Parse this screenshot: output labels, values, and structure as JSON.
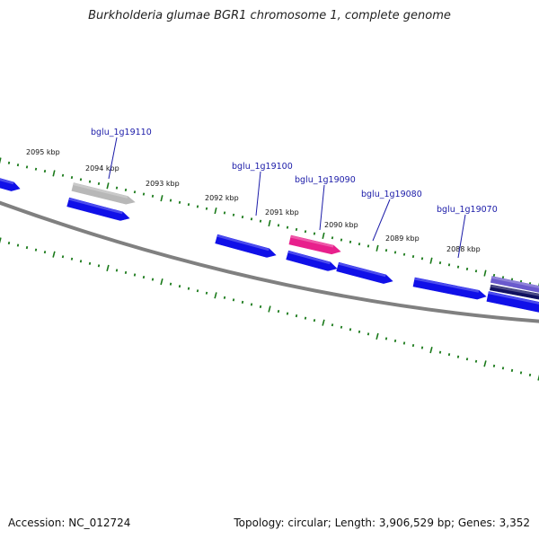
{
  "title": "Burkholderia glumae BGR1 chromosome 1, complete genome",
  "footer": {
    "accession": "Accession: NC_012724",
    "summary": "Topology: circular; Length: 3,906,529 bp; Genes: 3,352"
  },
  "colors": {
    "gene_blue": "#1010e8",
    "gene_grey": "#b8b8b8",
    "gene_pink": "#e8208c",
    "gene_purple": "#6a5acd",
    "gene_navy": "#101060",
    "backbone": "#808080",
    "tick": "#1a7a1a",
    "label_line": "#1a1aa8"
  },
  "tick_labels": [
    "2095 kbp",
    "2094 kbp",
    "2093 kbp",
    "2092 kbp",
    "2091 kbp",
    "2090 kbp",
    "2089 kbp",
    "2088 kbp"
  ],
  "gene_labels": [
    "bglu_1g19110",
    "bglu_1g19100",
    "bglu_1g19090",
    "bglu_1g19080",
    "bglu_1g19070"
  ],
  "genes": [
    {
      "color": "gene_blue",
      "strand": "forward"
    },
    {
      "color": "gene_grey",
      "strand": "forward"
    },
    {
      "color": "gene_blue",
      "strand": "forward"
    },
    {
      "color": "gene_blue",
      "strand": "forward"
    },
    {
      "color": "gene_pink",
      "strand": "forward"
    },
    {
      "color": "gene_blue",
      "strand": "forward"
    },
    {
      "color": "gene_blue",
      "strand": "forward"
    },
    {
      "color": "gene_blue",
      "strand": "forward"
    },
    {
      "color": "gene_purple",
      "strand": "forward"
    },
    {
      "color": "gene_navy",
      "strand": "forward"
    },
    {
      "color": "gene_blue",
      "strand": "forward"
    }
  ]
}
